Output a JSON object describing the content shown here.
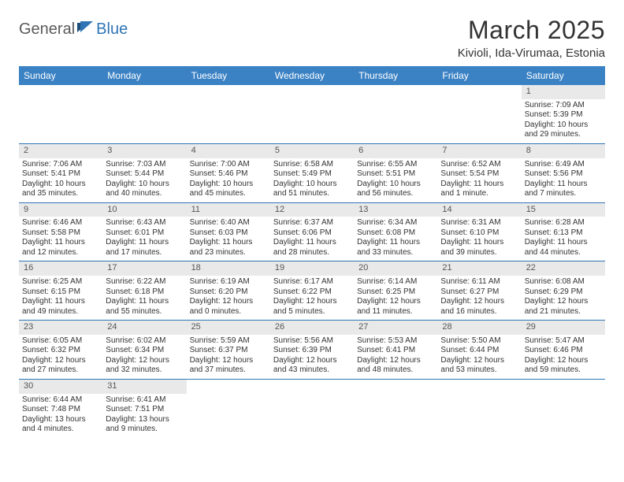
{
  "logo": {
    "general": "General",
    "blue": "Blue"
  },
  "title": "March 2025",
  "location": "Kivioli, Ida-Virumaa, Estonia",
  "colors": {
    "header_bg": "#3b82c4",
    "header_text": "#ffffff",
    "daynum_bg": "#e9e9e9",
    "border": "#2f75b5",
    "text": "#333333"
  },
  "dayHeaders": [
    "Sunday",
    "Monday",
    "Tuesday",
    "Wednesday",
    "Thursday",
    "Friday",
    "Saturday"
  ],
  "weeks": [
    [
      {
        "n": "",
        "sr": "",
        "ss": "",
        "dl": ""
      },
      {
        "n": "",
        "sr": "",
        "ss": "",
        "dl": ""
      },
      {
        "n": "",
        "sr": "",
        "ss": "",
        "dl": ""
      },
      {
        "n": "",
        "sr": "",
        "ss": "",
        "dl": ""
      },
      {
        "n": "",
        "sr": "",
        "ss": "",
        "dl": ""
      },
      {
        "n": "",
        "sr": "",
        "ss": "",
        "dl": ""
      },
      {
        "n": "1",
        "sr": "Sunrise: 7:09 AM",
        "ss": "Sunset: 5:39 PM",
        "dl": "Daylight: 10 hours and 29 minutes."
      }
    ],
    [
      {
        "n": "2",
        "sr": "Sunrise: 7:06 AM",
        "ss": "Sunset: 5:41 PM",
        "dl": "Daylight: 10 hours and 35 minutes."
      },
      {
        "n": "3",
        "sr": "Sunrise: 7:03 AM",
        "ss": "Sunset: 5:44 PM",
        "dl": "Daylight: 10 hours and 40 minutes."
      },
      {
        "n": "4",
        "sr": "Sunrise: 7:00 AM",
        "ss": "Sunset: 5:46 PM",
        "dl": "Daylight: 10 hours and 45 minutes."
      },
      {
        "n": "5",
        "sr": "Sunrise: 6:58 AM",
        "ss": "Sunset: 5:49 PM",
        "dl": "Daylight: 10 hours and 51 minutes."
      },
      {
        "n": "6",
        "sr": "Sunrise: 6:55 AM",
        "ss": "Sunset: 5:51 PM",
        "dl": "Daylight: 10 hours and 56 minutes."
      },
      {
        "n": "7",
        "sr": "Sunrise: 6:52 AM",
        "ss": "Sunset: 5:54 PM",
        "dl": "Daylight: 11 hours and 1 minute."
      },
      {
        "n": "8",
        "sr": "Sunrise: 6:49 AM",
        "ss": "Sunset: 5:56 PM",
        "dl": "Daylight: 11 hours and 7 minutes."
      }
    ],
    [
      {
        "n": "9",
        "sr": "Sunrise: 6:46 AM",
        "ss": "Sunset: 5:58 PM",
        "dl": "Daylight: 11 hours and 12 minutes."
      },
      {
        "n": "10",
        "sr": "Sunrise: 6:43 AM",
        "ss": "Sunset: 6:01 PM",
        "dl": "Daylight: 11 hours and 17 minutes."
      },
      {
        "n": "11",
        "sr": "Sunrise: 6:40 AM",
        "ss": "Sunset: 6:03 PM",
        "dl": "Daylight: 11 hours and 23 minutes."
      },
      {
        "n": "12",
        "sr": "Sunrise: 6:37 AM",
        "ss": "Sunset: 6:06 PM",
        "dl": "Daylight: 11 hours and 28 minutes."
      },
      {
        "n": "13",
        "sr": "Sunrise: 6:34 AM",
        "ss": "Sunset: 6:08 PM",
        "dl": "Daylight: 11 hours and 33 minutes."
      },
      {
        "n": "14",
        "sr": "Sunrise: 6:31 AM",
        "ss": "Sunset: 6:10 PM",
        "dl": "Daylight: 11 hours and 39 minutes."
      },
      {
        "n": "15",
        "sr": "Sunrise: 6:28 AM",
        "ss": "Sunset: 6:13 PM",
        "dl": "Daylight: 11 hours and 44 minutes."
      }
    ],
    [
      {
        "n": "16",
        "sr": "Sunrise: 6:25 AM",
        "ss": "Sunset: 6:15 PM",
        "dl": "Daylight: 11 hours and 49 minutes."
      },
      {
        "n": "17",
        "sr": "Sunrise: 6:22 AM",
        "ss": "Sunset: 6:18 PM",
        "dl": "Daylight: 11 hours and 55 minutes."
      },
      {
        "n": "18",
        "sr": "Sunrise: 6:19 AM",
        "ss": "Sunset: 6:20 PM",
        "dl": "Daylight: 12 hours and 0 minutes."
      },
      {
        "n": "19",
        "sr": "Sunrise: 6:17 AM",
        "ss": "Sunset: 6:22 PM",
        "dl": "Daylight: 12 hours and 5 minutes."
      },
      {
        "n": "20",
        "sr": "Sunrise: 6:14 AM",
        "ss": "Sunset: 6:25 PM",
        "dl": "Daylight: 12 hours and 11 minutes."
      },
      {
        "n": "21",
        "sr": "Sunrise: 6:11 AM",
        "ss": "Sunset: 6:27 PM",
        "dl": "Daylight: 12 hours and 16 minutes."
      },
      {
        "n": "22",
        "sr": "Sunrise: 6:08 AM",
        "ss": "Sunset: 6:29 PM",
        "dl": "Daylight: 12 hours and 21 minutes."
      }
    ],
    [
      {
        "n": "23",
        "sr": "Sunrise: 6:05 AM",
        "ss": "Sunset: 6:32 PM",
        "dl": "Daylight: 12 hours and 27 minutes."
      },
      {
        "n": "24",
        "sr": "Sunrise: 6:02 AM",
        "ss": "Sunset: 6:34 PM",
        "dl": "Daylight: 12 hours and 32 minutes."
      },
      {
        "n": "25",
        "sr": "Sunrise: 5:59 AM",
        "ss": "Sunset: 6:37 PM",
        "dl": "Daylight: 12 hours and 37 minutes."
      },
      {
        "n": "26",
        "sr": "Sunrise: 5:56 AM",
        "ss": "Sunset: 6:39 PM",
        "dl": "Daylight: 12 hours and 43 minutes."
      },
      {
        "n": "27",
        "sr": "Sunrise: 5:53 AM",
        "ss": "Sunset: 6:41 PM",
        "dl": "Daylight: 12 hours and 48 minutes."
      },
      {
        "n": "28",
        "sr": "Sunrise: 5:50 AM",
        "ss": "Sunset: 6:44 PM",
        "dl": "Daylight: 12 hours and 53 minutes."
      },
      {
        "n": "29",
        "sr": "Sunrise: 5:47 AM",
        "ss": "Sunset: 6:46 PM",
        "dl": "Daylight: 12 hours and 59 minutes."
      }
    ],
    [
      {
        "n": "30",
        "sr": "Sunrise: 6:44 AM",
        "ss": "Sunset: 7:48 PM",
        "dl": "Daylight: 13 hours and 4 minutes."
      },
      {
        "n": "31",
        "sr": "Sunrise: 6:41 AM",
        "ss": "Sunset: 7:51 PM",
        "dl": "Daylight: 13 hours and 9 minutes."
      },
      {
        "n": "",
        "sr": "",
        "ss": "",
        "dl": ""
      },
      {
        "n": "",
        "sr": "",
        "ss": "",
        "dl": ""
      },
      {
        "n": "",
        "sr": "",
        "ss": "",
        "dl": ""
      },
      {
        "n": "",
        "sr": "",
        "ss": "",
        "dl": ""
      },
      {
        "n": "",
        "sr": "",
        "ss": "",
        "dl": ""
      }
    ]
  ]
}
